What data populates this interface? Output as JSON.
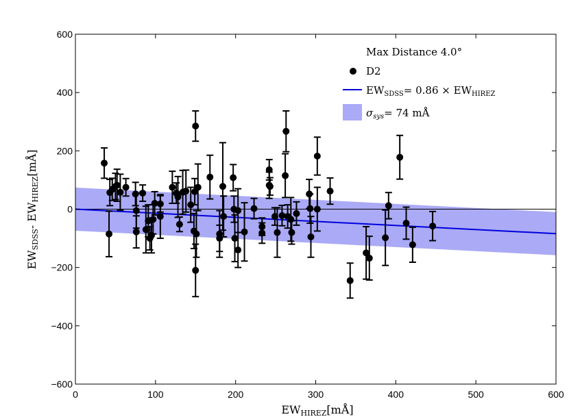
{
  "chart_data": {
    "type": "scatter",
    "title": "",
    "xlabel_main": "EW",
    "xlabel_sub": "HIREZ",
    "xlabel_unit": "[mÅ]",
    "ylabel_main_1": "EW",
    "ylabel_sub_1": "SDSS",
    "ylabel_sep": "- ",
    "ylabel_main_2": "EW",
    "ylabel_sub_2": "HIREZ",
    "ylabel_unit": "[mÅ]",
    "xlim": [
      0,
      600
    ],
    "ylim": [
      -600,
      600
    ],
    "xticks": [
      0,
      100,
      200,
      300,
      400,
      500,
      600
    ],
    "yticks": [
      -600,
      -400,
      -200,
      0,
      200,
      400,
      600
    ],
    "xtick_labels": [
      "0",
      "100",
      "200",
      "300",
      "400",
      "500",
      "600"
    ],
    "ytick_labels": [
      "−600",
      "−400",
      "−200",
      "0",
      "200",
      "400",
      "600"
    ],
    "zero_line": 0,
    "fit": {
      "slope_factor": 0.86,
      "line_start": [
        0,
        0
      ],
      "line_end": [
        600,
        -84
      ]
    },
    "band": {
      "sigma_sys": 74
    },
    "legend": {
      "title": "Max Distance 4.0°",
      "series_label": "D2",
      "fit_label_main": "EW",
      "fit_label_sub": "SDSS",
      "fit_label_rest": "= 0.86 × EW",
      "fit_label_sub2": "HIREZ",
      "band_label_sigma": "σ",
      "band_label_sub": "sys",
      "band_label_rest": "= 74 mÅ",
      "position": "top-right"
    },
    "series": [
      {
        "name": "D2",
        "points": [
          {
            "x": 36,
            "y": 158,
            "err": 52
          },
          {
            "x": 42,
            "y": -85,
            "err": 78
          },
          {
            "x": 43,
            "y": 57,
            "err": 45
          },
          {
            "x": 46,
            "y": 68,
            "err": 38
          },
          {
            "x": 50,
            "y": 78,
            "err": 45
          },
          {
            "x": 52,
            "y": 82,
            "err": 55
          },
          {
            "x": 56,
            "y": 58,
            "err": 62
          },
          {
            "x": 63,
            "y": 75,
            "err": 30
          },
          {
            "x": 75,
            "y": 52,
            "err": 40
          },
          {
            "x": 76,
            "y": -5,
            "err": 60
          },
          {
            "x": 76,
            "y": -78,
            "err": 55
          },
          {
            "x": 84,
            "y": 55,
            "err": 28
          },
          {
            "x": 88,
            "y": -70,
            "err": 80
          },
          {
            "x": 91,
            "y": -40,
            "err": 55
          },
          {
            "x": 93,
            "y": -100,
            "err": 40
          },
          {
            "x": 95,
            "y": -90,
            "err": 60
          },
          {
            "x": 97,
            "y": -35,
            "err": 50
          },
          {
            "x": 99,
            "y": 20,
            "err": 40
          },
          {
            "x": 106,
            "y": 18,
            "err": 28
          },
          {
            "x": 106,
            "y": -25,
            "err": 75
          },
          {
            "x": 121,
            "y": 75,
            "err": 55
          },
          {
            "x": 126,
            "y": 55,
            "err": 35
          },
          {
            "x": 128,
            "y": 42,
            "err": 70
          },
          {
            "x": 130,
            "y": -52,
            "err": 25
          },
          {
            "x": 134,
            "y": 58,
            "err": 75
          },
          {
            "x": 138,
            "y": 62,
            "err": 72
          },
          {
            "x": 144,
            "y": 15,
            "err": 60
          },
          {
            "x": 148,
            "y": -75,
            "err": 60
          },
          {
            "x": 149,
            "y": 60,
            "err": 45
          },
          {
            "x": 150,
            "y": 285,
            "err": 52
          },
          {
            "x": 150,
            "y": -210,
            "err": 90
          },
          {
            "x": 151,
            "y": -85,
            "err": 80
          },
          {
            "x": 153,
            "y": 75,
            "err": 80
          },
          {
            "x": 168,
            "y": 110,
            "err": 75
          },
          {
            "x": 180,
            "y": -85,
            "err": 80
          },
          {
            "x": 180,
            "y": -100,
            "err": 45
          },
          {
            "x": 184,
            "y": 78,
            "err": 150
          },
          {
            "x": 185,
            "y": -25,
            "err": 70
          },
          {
            "x": 197,
            "y": 108,
            "err": 45
          },
          {
            "x": 198,
            "y": 0,
            "err": 45
          },
          {
            "x": 199,
            "y": -100,
            "err": 80
          },
          {
            "x": 203,
            "y": -140,
            "err": 60
          },
          {
            "x": 203,
            "y": -5,
            "err": 75
          },
          {
            "x": 211,
            "y": -78,
            "err": 100
          },
          {
            "x": 223,
            "y": 2,
            "err": 35
          },
          {
            "x": 233,
            "y": -60,
            "err": 30
          },
          {
            "x": 233,
            "y": -82,
            "err": 35
          },
          {
            "x": 242,
            "y": 82,
            "err": 45
          },
          {
            "x": 242,
            "y": 135,
            "err": 35
          },
          {
            "x": 243,
            "y": 78,
            "err": 30
          },
          {
            "x": 249,
            "y": -25,
            "err": 30
          },
          {
            "x": 252,
            "y": -80,
            "err": 85
          },
          {
            "x": 258,
            "y": -22,
            "err": 35
          },
          {
            "x": 262,
            "y": 115,
            "err": 75
          },
          {
            "x": 263,
            "y": 267,
            "err": 70
          },
          {
            "x": 265,
            "y": -25,
            "err": 40
          },
          {
            "x": 269,
            "y": -35,
            "err": 75
          },
          {
            "x": 270,
            "y": -80,
            "err": 40
          },
          {
            "x": 276,
            "y": -15,
            "err": 40
          },
          {
            "x": 292,
            "y": 52,
            "err": 50
          },
          {
            "x": 293,
            "y": 2,
            "err": 50
          },
          {
            "x": 294,
            "y": -95,
            "err": 70
          },
          {
            "x": 302,
            "y": 182,
            "err": 65
          },
          {
            "x": 302,
            "y": 0,
            "err": 75
          },
          {
            "x": 318,
            "y": 62,
            "err": 45
          },
          {
            "x": 343,
            "y": -245,
            "err": 60
          },
          {
            "x": 363,
            "y": -150,
            "err": 90
          },
          {
            "x": 367,
            "y": -168,
            "err": 75
          },
          {
            "x": 387,
            "y": -98,
            "err": 95
          },
          {
            "x": 391,
            "y": 12,
            "err": 45
          },
          {
            "x": 405,
            "y": 178,
            "err": 75
          },
          {
            "x": 413,
            "y": -48,
            "err": 55
          },
          {
            "x": 421,
            "y": -122,
            "err": 60
          },
          {
            "x": 446,
            "y": -58,
            "err": 50
          }
        ]
      }
    ]
  }
}
